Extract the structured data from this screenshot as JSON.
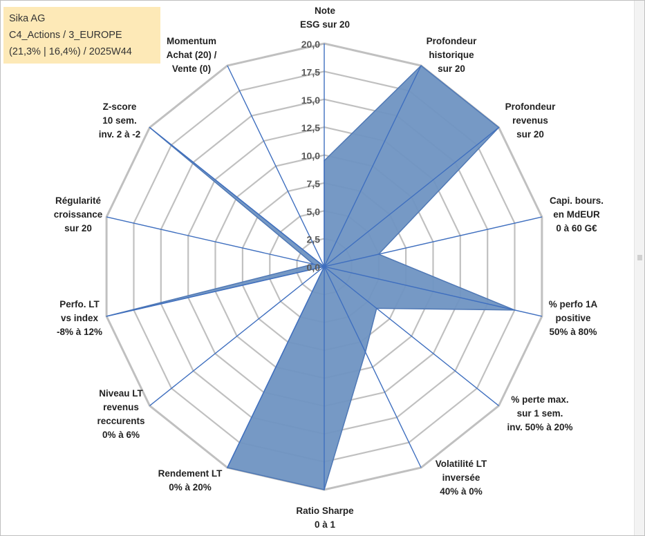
{
  "info_box": {
    "line1": "Sika AG",
    "line2": "C4_Actions / 3_EUROPE",
    "line3": "(21,3% | 16,4%) / 2025W44"
  },
  "colors": {
    "fill": "#6f93c2",
    "stroke": "#4f78b5",
    "grid": "#c0c0c0",
    "spoke": "#3f6fbf",
    "info_bg": "#fde9b7"
  },
  "chart_data": {
    "type": "radar",
    "title": "",
    "rmax": 20,
    "grid": true,
    "ticks": [
      "0,0",
      "2,5",
      "5,0",
      "7,5",
      "10,0",
      "12,5",
      "15,0",
      "17,5",
      "20,0"
    ],
    "axes": [
      [
        "Note",
        "ESG sur 20"
      ],
      [
        "Profondeur",
        "historique",
        "sur 20"
      ],
      [
        "Profondeur",
        "revenus",
        "sur 20"
      ],
      [
        "Capi. bours.",
        "en MdEUR",
        "0 à 60 G€"
      ],
      [
        "% perfo 1A",
        "positive",
        "50% à 80%"
      ],
      [
        "% perte max.",
        "sur 1 sem.",
        "inv. 50% à 20%"
      ],
      [
        "Volatilité LT",
        "inversée",
        "40% à 0%"
      ],
      [
        "Ratio Sharpe",
        "0 à 1"
      ],
      [
        "Rendement LT",
        "0% à 20%"
      ],
      [
        "Niveau LT",
        "revenus",
        "reccurents",
        "0% à 6%"
      ],
      [
        "Perfo. LT",
        "vs index",
        "-8% à 12%"
      ],
      [
        "Régularité",
        "croissance",
        "sur 20"
      ],
      [
        "Z-score",
        "10 sem.",
        "inv. 2 à -2"
      ],
      [
        "Momentum",
        "Achat (20) /",
        "Vente (0)"
      ]
    ],
    "series": [
      {
        "values": [
          9.5,
          20,
          20,
          5,
          17.5,
          6,
          8.5,
          20,
          20,
          0,
          20,
          1,
          20,
          0
        ]
      }
    ]
  }
}
